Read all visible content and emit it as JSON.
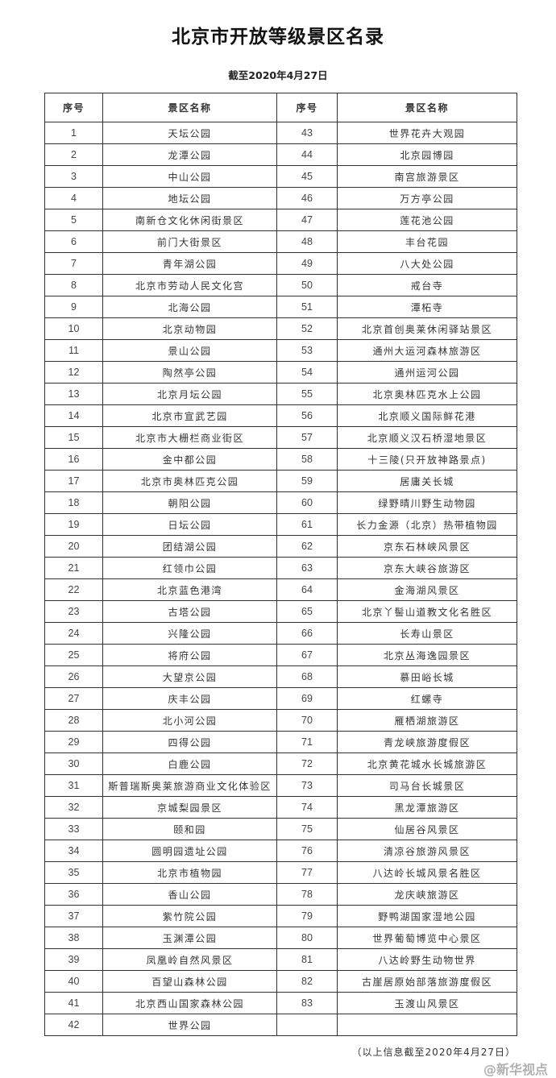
{
  "document": {
    "title": "北京市开放等级景区名录",
    "subtitle": "截至2020年4月27日",
    "footnote": "（以上信息截至2020年4月27日）",
    "watermark": "@新华视点"
  },
  "table": {
    "headers": [
      "序号",
      "景区名称",
      "序号",
      "景区名称"
    ],
    "left": [
      {
        "no": "1",
        "name": "天坛公园"
      },
      {
        "no": "2",
        "name": "龙潭公园"
      },
      {
        "no": "3",
        "name": "中山公园"
      },
      {
        "no": "4",
        "name": "地坛公园"
      },
      {
        "no": "5",
        "name": "南新仓文化休闲街景区"
      },
      {
        "no": "6",
        "name": "前门大街景区"
      },
      {
        "no": "7",
        "name": "青年湖公园"
      },
      {
        "no": "8",
        "name": "北京市劳动人民文化宫"
      },
      {
        "no": "9",
        "name": "北海公园"
      },
      {
        "no": "10",
        "name": "北京动物园"
      },
      {
        "no": "11",
        "name": "景山公园"
      },
      {
        "no": "12",
        "name": "陶然亭公园"
      },
      {
        "no": "13",
        "name": "北京月坛公园"
      },
      {
        "no": "14",
        "name": "北京市宣武艺园"
      },
      {
        "no": "15",
        "name": "北京市大栅栏商业街区"
      },
      {
        "no": "16",
        "name": "金中都公园"
      },
      {
        "no": "17",
        "name": "北京市奥林匹克公园"
      },
      {
        "no": "18",
        "name": "朝阳公园"
      },
      {
        "no": "19",
        "name": "日坛公园"
      },
      {
        "no": "20",
        "name": "团结湖公园"
      },
      {
        "no": "21",
        "name": "红领巾公园"
      },
      {
        "no": "22",
        "name": "北京蓝色港湾"
      },
      {
        "no": "23",
        "name": "古塔公园"
      },
      {
        "no": "24",
        "name": "兴隆公园"
      },
      {
        "no": "25",
        "name": "将府公园"
      },
      {
        "no": "26",
        "name": "大望京公园"
      },
      {
        "no": "27",
        "name": "庆丰公园"
      },
      {
        "no": "28",
        "name": "北小河公园"
      },
      {
        "no": "29",
        "name": "四得公园"
      },
      {
        "no": "30",
        "name": "白鹿公园"
      },
      {
        "no": "31",
        "name": "斯普瑞斯奥莱旅游商业文化体验区"
      },
      {
        "no": "32",
        "name": "京城梨园景区"
      },
      {
        "no": "33",
        "name": "颐和园"
      },
      {
        "no": "34",
        "name": "圆明园遗址公园"
      },
      {
        "no": "35",
        "name": "北京市植物园"
      },
      {
        "no": "36",
        "name": "香山公园"
      },
      {
        "no": "37",
        "name": "紫竹院公园"
      },
      {
        "no": "38",
        "name": "玉渊潭公园"
      },
      {
        "no": "39",
        "name": "凤凰岭自然风景区"
      },
      {
        "no": "40",
        "name": "百望山森林公园"
      },
      {
        "no": "41",
        "name": "北京西山国家森林公园"
      },
      {
        "no": "42",
        "name": "世界公园"
      }
    ],
    "right": [
      {
        "no": "43",
        "name": "世界花卉大观园"
      },
      {
        "no": "44",
        "name": "北京园博园"
      },
      {
        "no": "45",
        "name": "南宫旅游景区"
      },
      {
        "no": "46",
        "name": "万方亭公园"
      },
      {
        "no": "47",
        "name": "莲花池公园"
      },
      {
        "no": "48",
        "name": "丰台花园"
      },
      {
        "no": "49",
        "name": "八大处公园"
      },
      {
        "no": "50",
        "name": "戒台寺"
      },
      {
        "no": "51",
        "name": "潭柘寺"
      },
      {
        "no": "52",
        "name": "北京首创奥莱休闲驿站景区"
      },
      {
        "no": "53",
        "name": "通州大运河森林旅游区"
      },
      {
        "no": "54",
        "name": "通州运河公园"
      },
      {
        "no": "55",
        "name": "北京奥林匹克水上公园"
      },
      {
        "no": "56",
        "name": "北京顺义国际鲜花港"
      },
      {
        "no": "57",
        "name": "北京顺义汉石桥湿地景区"
      },
      {
        "no": "58",
        "name": "十三陵(只开放神路景点)"
      },
      {
        "no": "59",
        "name": "居庸关长城"
      },
      {
        "no": "60",
        "name": "绿野晴川野生动物园"
      },
      {
        "no": "61",
        "name": "长力金源（北京）热带植物园"
      },
      {
        "no": "62",
        "name": "京东石林峡风景区"
      },
      {
        "no": "63",
        "name": "京东大峡谷旅游区"
      },
      {
        "no": "64",
        "name": "金海湖风景区"
      },
      {
        "no": "65",
        "name": "北京丫髻山道教文化名胜区"
      },
      {
        "no": "66",
        "name": "长寿山景区"
      },
      {
        "no": "67",
        "name": "北京丛海逸园景区"
      },
      {
        "no": "68",
        "name": "慕田峪长城"
      },
      {
        "no": "69",
        "name": "红螺寺"
      },
      {
        "no": "70",
        "name": "雁栖湖旅游区"
      },
      {
        "no": "71",
        "name": "青龙峡旅游度假区"
      },
      {
        "no": "72",
        "name": "北京黄花城水长城旅游区"
      },
      {
        "no": "73",
        "name": "司马台长城景区"
      },
      {
        "no": "74",
        "name": "黑龙潭旅游区"
      },
      {
        "no": "75",
        "name": "仙居谷风景区"
      },
      {
        "no": "76",
        "name": "清凉谷旅游风景区"
      },
      {
        "no": "77",
        "name": "八达岭长城风景名胜区"
      },
      {
        "no": "78",
        "name": "龙庆峡旅游区"
      },
      {
        "no": "79",
        "name": "野鸭湖国家湿地公园"
      },
      {
        "no": "80",
        "name": "世界葡萄博览中心景区"
      },
      {
        "no": "81",
        "name": "八达岭野生动物世界"
      },
      {
        "no": "82",
        "name": "古崖居原始部落旅游度假区"
      },
      {
        "no": "83",
        "name": "玉渡山风景区"
      }
    ]
  }
}
